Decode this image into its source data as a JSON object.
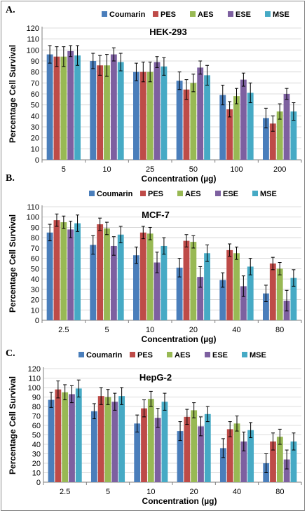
{
  "chart_data": [
    {
      "type": "bar",
      "panel_label": "A.",
      "title": "HEK-293",
      "xlabel": "Concentration (µg)",
      "ylabel": "Percentage Cell Survival",
      "ylim": [
        0,
        120
      ],
      "yticks": [
        0,
        10,
        20,
        30,
        40,
        50,
        60,
        70,
        80,
        90,
        100,
        110,
        120
      ],
      "grid": true,
      "legend_position": "top",
      "categories": [
        "5",
        "10",
        "25",
        "50",
        "100",
        "200"
      ],
      "series": [
        {
          "name": "Coumarin",
          "color": "#4a7ebb",
          "values": [
            96,
            90,
            80,
            72,
            59,
            38
          ],
          "errors": [
            8,
            7,
            8,
            8,
            9,
            9
          ]
        },
        {
          "name": "PES",
          "color": "#be4b48",
          "values": [
            94,
            86,
            80,
            64,
            46,
            33
          ],
          "errors": [
            9,
            9,
            9,
            9,
            7,
            7
          ]
        },
        {
          "name": "AES",
          "color": "#98b954",
          "values": [
            94,
            86,
            80,
            70,
            58,
            44
          ],
          "errors": [
            9,
            10,
            9,
            8,
            7,
            7
          ]
        },
        {
          "name": "ESE",
          "color": "#7d60a0",
          "values": [
            99,
            96,
            89,
            84,
            73,
            60
          ],
          "errors": [
            5,
            6,
            5,
            6,
            6,
            5
          ]
        },
        {
          "name": "MSE",
          "color": "#46aac5",
          "values": [
            95,
            89,
            85,
            77,
            61,
            44
          ],
          "errors": [
            9,
            8,
            8,
            9,
            9,
            8
          ]
        }
      ]
    },
    {
      "type": "bar",
      "panel_label": "B.",
      "title": "MCF-7",
      "xlabel": "Concentration (µg)",
      "ylabel": "Percentage Cell Survival",
      "ylim": [
        0,
        110
      ],
      "yticks": [
        0,
        10,
        20,
        30,
        40,
        50,
        60,
        70,
        80,
        90,
        100,
        110
      ],
      "grid": true,
      "legend_position": "top",
      "categories": [
        "2.5",
        "5",
        "10",
        "20",
        "40",
        "80"
      ],
      "series": [
        {
          "name": "Coumarin",
          "color": "#4a7ebb",
          "values": [
            85,
            73,
            63,
            51,
            39,
            26
          ],
          "errors": [
            8,
            9,
            8,
            9,
            7,
            8
          ]
        },
        {
          "name": "PES",
          "color": "#be4b48",
          "values": [
            97,
            93,
            85,
            77,
            68,
            55
          ],
          "errors": [
            6,
            6,
            6,
            6,
            6,
            6
          ]
        },
        {
          "name": "AES",
          "color": "#98b954",
          "values": [
            95,
            89,
            84,
            76,
            65,
            50
          ],
          "errors": [
            6,
            6,
            6,
            6,
            6,
            6
          ]
        },
        {
          "name": "ESE",
          "color": "#7d60a0",
          "values": [
            88,
            72,
            56,
            42,
            33,
            19
          ],
          "errors": [
            8,
            9,
            10,
            10,
            10,
            10
          ]
        },
        {
          "name": "MSE",
          "color": "#46aac5",
          "values": [
            94,
            83,
            72,
            65,
            52,
            41
          ],
          "errors": [
            8,
            8,
            8,
            8,
            8,
            8
          ]
        }
      ]
    },
    {
      "type": "bar",
      "panel_label": "C.",
      "title": "HepG-2",
      "xlabel": "Concentration (µg)",
      "ylabel": "Percentage Cell Survival",
      "ylim": [
        0,
        120
      ],
      "yticks": [
        0,
        10,
        20,
        30,
        40,
        50,
        60,
        70,
        80,
        90,
        100,
        110,
        120
      ],
      "grid": true,
      "legend_position": "top",
      "categories": [
        "2.5",
        "5",
        "10",
        "20",
        "40",
        "80"
      ],
      "series": [
        {
          "name": "Coumarin",
          "color": "#4a7ebb",
          "values": [
            87,
            75,
            62,
            54,
            36,
            20
          ],
          "errors": [
            8,
            8,
            9,
            10,
            10,
            10
          ]
        },
        {
          "name": "PES",
          "color": "#be4b48",
          "values": [
            98,
            91,
            78,
            69,
            56,
            43
          ],
          "errors": [
            9,
            9,
            9,
            8,
            8,
            9
          ]
        },
        {
          "name": "AES",
          "color": "#98b954",
          "values": [
            95,
            90,
            88,
            76,
            62,
            48
          ],
          "errors": [
            8,
            8,
            8,
            8,
            8,
            8
          ]
        },
        {
          "name": "ESE",
          "color": "#7d60a0",
          "values": [
            93,
            85,
            68,
            59,
            43,
            24
          ],
          "errors": [
            9,
            9,
            10,
            10,
            10,
            10
          ]
        },
        {
          "name": "MSE",
          "color": "#46aac5",
          "values": [
            99,
            91,
            85,
            72,
            55,
            43
          ],
          "errors": [
            9,
            9,
            9,
            8,
            8,
            9
          ]
        }
      ]
    }
  ]
}
